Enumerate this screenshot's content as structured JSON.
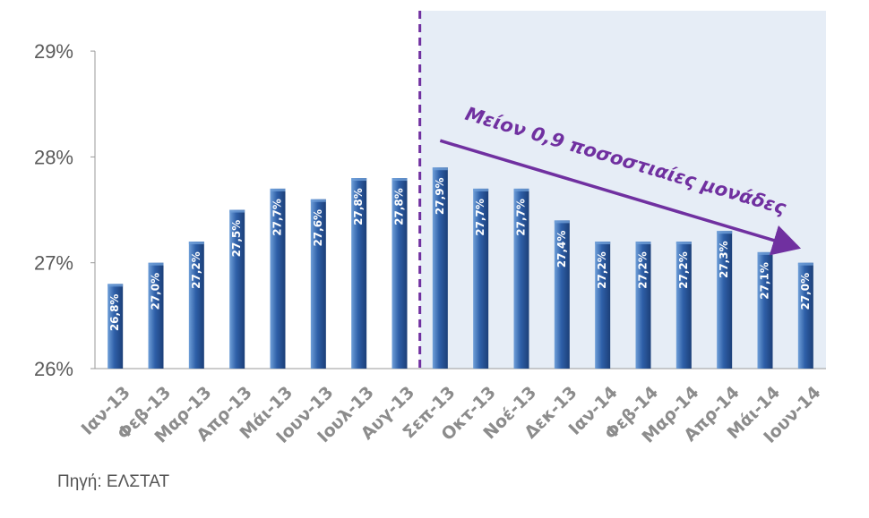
{
  "chart_data": {
    "type": "bar",
    "categories": [
      "Ιαν-13",
      "Φεβ-13",
      "Μαρ-13",
      "Απρ-13",
      "Μάι-13",
      "Ιουν-13",
      "Ιουλ-13",
      "Αυγ-13",
      "Σεπ-13",
      "Οκτ-13",
      "Νοέ-13",
      "Δεκ-13",
      "Ιαν-14",
      "Φεβ-14",
      "Μαρ-14",
      "Απρ-14",
      "Μάι-14",
      "Ιουν-14"
    ],
    "values": [
      26.8,
      27.0,
      27.2,
      27.5,
      27.7,
      27.6,
      27.8,
      27.8,
      27.9,
      27.7,
      27.7,
      27.4,
      27.2,
      27.2,
      27.2,
      27.3,
      27.1,
      27.0
    ],
    "data_labels": [
      "26,8%",
      "27,0%",
      "27,2%",
      "27,5%",
      "27,7%",
      "27,6%",
      "27,8%",
      "27,8%",
      "27,9%",
      "27,7%",
      "27,7%",
      "27,4%",
      "27,2%",
      "27,2%",
      "27,2%",
      "27,3%",
      "27,1%",
      "27,0%"
    ],
    "ylim": [
      26,
      29
    ],
    "yticks": [
      26,
      27,
      28,
      29
    ],
    "ytick_labels": [
      "26%",
      "27%",
      "28%",
      "29%"
    ],
    "xlabel": "",
    "ylabel": "",
    "grid": false,
    "highlight_start_category": "Σεπ-13",
    "annotation": "Μείον 0,9 ποσοστιαίες μονάδες",
    "colors": {
      "bar": "#2e5fa8",
      "bar_light": "#6f9fd8",
      "bar_dark": "#1c3f78",
      "highlight_bg": "#e6edf6",
      "divider": "#7030a0",
      "annotation": "#7030a0"
    }
  },
  "source_note": "Πηγή: ΕΛΣΤΑΤ"
}
